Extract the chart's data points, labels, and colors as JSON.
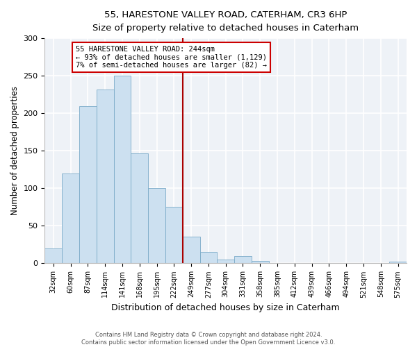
{
  "title": "55, HARESTONE VALLEY ROAD, CATERHAM, CR3 6HP",
  "subtitle": "Size of property relative to detached houses in Caterham",
  "xlabel": "Distribution of detached houses by size in Caterham",
  "ylabel": "Number of detached properties",
  "bar_labels": [
    "32sqm",
    "60sqm",
    "87sqm",
    "114sqm",
    "141sqm",
    "168sqm",
    "195sqm",
    "222sqm",
    "249sqm",
    "277sqm",
    "304sqm",
    "331sqm",
    "358sqm",
    "385sqm",
    "412sqm",
    "439sqm",
    "466sqm",
    "494sqm",
    "521sqm",
    "548sqm",
    "575sqm"
  ],
  "bar_values": [
    20,
    120,
    209,
    232,
    250,
    147,
    100,
    75,
    36,
    15,
    5,
    10,
    3,
    0,
    0,
    0,
    0,
    0,
    0,
    0,
    2
  ],
  "bar_color": "#cce0f0",
  "bar_edge_color": "#7aaac8",
  "vline_color": "#aa0000",
  "vline_x_index": 8,
  "annotation_text": "55 HARESTONE VALLEY ROAD: 244sqm\n← 93% of detached houses are smaller (1,129)\n7% of semi-detached houses are larger (82) →",
  "annotation_box_facecolor": "#ffffff",
  "annotation_box_edgecolor": "#cc0000",
  "ylim": [
    0,
    300
  ],
  "yticks": [
    0,
    50,
    100,
    150,
    200,
    250,
    300
  ],
  "footer_line1": "Contains HM Land Registry data © Crown copyright and database right 2024.",
  "footer_line2": "Contains public sector information licensed under the Open Government Licence v3.0.",
  "bg_color": "#ffffff",
  "plot_bg_color": "#eef2f7",
  "grid_color": "#ffffff"
}
